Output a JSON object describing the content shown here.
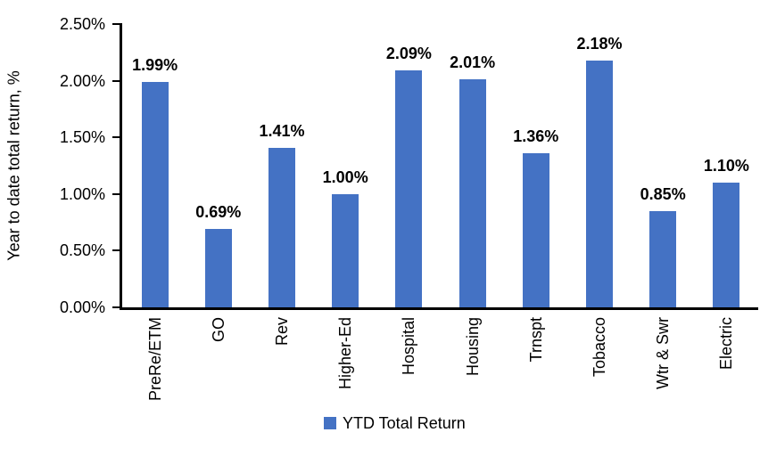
{
  "chart_data": {
    "type": "bar",
    "categories": [
      "PreRe/ETM",
      "GO",
      "Rev",
      "Higher-Ed",
      "Hospital",
      "Housing",
      "Trnspt",
      "Tobacco",
      "Wtr & Swr",
      "Electric"
    ],
    "values": [
      1.99,
      0.69,
      1.41,
      1.0,
      2.09,
      2.01,
      1.36,
      2.18,
      0.85,
      1.1
    ],
    "data_labels": [
      "1.99%",
      "0.69%",
      "1.41%",
      "1.00%",
      "2.09%",
      "2.01%",
      "1.36%",
      "2.18%",
      "0.85%",
      "1.10%"
    ],
    "ylabel": "Year to date total return, %",
    "yticks": [
      "0.00%",
      "0.50%",
      "1.00%",
      "1.50%",
      "2.00%",
      "2.50%"
    ],
    "ylim": [
      0,
      2.5
    ],
    "grid": false,
    "legend": "YTD Total Return",
    "legend_position": "bottom",
    "bar_color": "#4472C4",
    "axis_color": "#000000",
    "text_color": "#000000"
  }
}
